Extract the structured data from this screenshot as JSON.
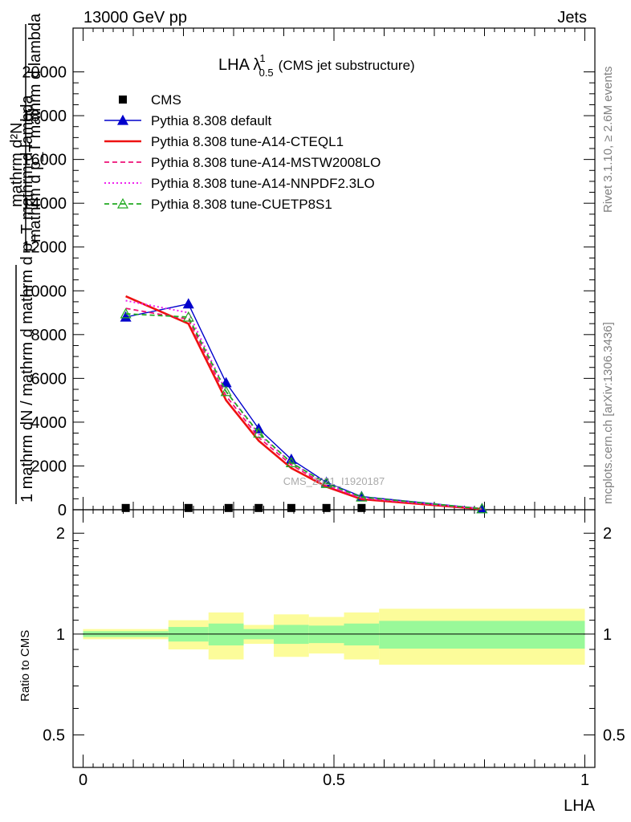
{
  "header": {
    "left": "13000 GeV pp",
    "right": "Jets"
  },
  "side_labels": {
    "rivet": "Rivet 3.1.10, ≥ 2.6M events",
    "mcplots": "mcplots.cern.ch [arXiv:1306.3436]"
  },
  "chart_data": [
    {
      "type": "line",
      "title_main": "LHA λ",
      "title_sup": "1",
      "title_sub": "0.5",
      "title_suffix": "(CMS jet substructure)",
      "watermark": "CMS_2021_I1920187",
      "ylabel_numerator": "mathrm d²N",
      "ylabel_denominator": "mathrm d p_T mathrm d lambda",
      "ylabel_lower": "1   mathrm dN / mathrm d mathrm d p_T mathrm d lambda",
      "ylim": [
        0,
        22000
      ],
      "yticks": [
        0,
        2000,
        4000,
        6000,
        8000,
        10000,
        12000,
        14000,
        16000,
        18000,
        20000
      ],
      "ytick_labels": [
        "0",
        "2000",
        "4000",
        "6000",
        "8000",
        "10000",
        "12000",
        "14000",
        "16000",
        "18000",
        "20000"
      ],
      "xlim": [
        -0.02,
        1.02
      ],
      "grid": false,
      "legend_position": "top-left",
      "series": [
        {
          "name": "CMS",
          "color": "#000000",
          "marker": "square",
          "line": "none",
          "x": [
            0.085,
            0.21,
            0.29,
            0.35,
            0.415,
            0.485,
            0.555
          ],
          "y": [
            80,
            80,
            80,
            80,
            80,
            80,
            80
          ]
        },
        {
          "name": "Pythia 8.308 default",
          "color": "#0000cc",
          "marker": "triangle",
          "line": "solid",
          "x": [
            0.085,
            0.21,
            0.285,
            0.35,
            0.415,
            0.485,
            0.555,
            0.795
          ],
          "y": [
            8800,
            9400,
            5800,
            3700,
            2300,
            1250,
            600,
            50
          ]
        },
        {
          "name": "Pythia 8.308 tune-A14-CTEQL1",
          "color": "#ee1111",
          "marker": "none",
          "line": "solid-thick",
          "x": [
            0.085,
            0.21,
            0.285,
            0.35,
            0.415,
            0.485,
            0.555,
            0.795
          ],
          "y": [
            9750,
            8500,
            5000,
            3150,
            1900,
            1050,
            480,
            30
          ]
        },
        {
          "name": "Pythia 8.308 tune-A14-MSTW2008LO",
          "color": "#ee1177",
          "marker": "none",
          "line": "dashed",
          "x": [
            0.085,
            0.21,
            0.285,
            0.35,
            0.415,
            0.485,
            0.555,
            0.795
          ],
          "y": [
            9200,
            8700,
            5200,
            3300,
            2050,
            1100,
            520,
            35
          ]
        },
        {
          "name": "Pythia 8.308 tune-A14-NNPDF2.3LO",
          "color": "#ee22ee",
          "marker": "none",
          "line": "dotted",
          "x": [
            0.085,
            0.21,
            0.285,
            0.35,
            0.415,
            0.485,
            0.555,
            0.795
          ],
          "y": [
            9550,
            9000,
            5400,
            3450,
            2150,
            1150,
            550,
            40
          ]
        },
        {
          "name": "Pythia 8.308 tune-CUETP8S1",
          "color": "#22aa22",
          "marker": "triangle-open",
          "line": "dashed",
          "x": [
            0.085,
            0.21,
            0.285,
            0.35,
            0.415,
            0.485,
            0.555,
            0.795
          ],
          "y": [
            8950,
            8800,
            5400,
            3500,
            2150,
            1200,
            580,
            45
          ]
        }
      ]
    },
    {
      "type": "area",
      "ylabel": "Ratio to CMS",
      "xlabel": "LHA",
      "log_y": true,
      "ylim": [
        0.4,
        2.35
      ],
      "yticks": [
        0.5,
        1,
        2
      ],
      "ytick_labels": [
        "0.5",
        "1",
        "2"
      ],
      "xlim": [
        -0.02,
        1.02
      ],
      "xticks": [
        0,
        0.5,
        1
      ],
      "xtick_labels": [
        "0",
        "0.5",
        "1"
      ],
      "reference_line": 1,
      "bands": [
        {
          "x0": 0.0,
          "x1": 0.17,
          "inner": [
            0.98,
            1.02
          ],
          "outer": [
            0.965,
            1.035
          ]
        },
        {
          "x0": 0.17,
          "x1": 0.25,
          "inner": [
            0.95,
            1.05
          ],
          "outer": [
            0.9,
            1.1
          ]
        },
        {
          "x0": 0.25,
          "x1": 0.32,
          "inner": [
            0.925,
            1.075
          ],
          "outer": [
            0.84,
            1.16
          ]
        },
        {
          "x0": 0.32,
          "x1": 0.38,
          "inner": [
            0.965,
            1.035
          ],
          "outer": [
            0.935,
            1.065
          ]
        },
        {
          "x0": 0.38,
          "x1": 0.45,
          "inner": [
            0.935,
            1.065
          ],
          "outer": [
            0.855,
            1.145
          ]
        },
        {
          "x0": 0.45,
          "x1": 0.52,
          "inner": [
            0.94,
            1.06
          ],
          "outer": [
            0.875,
            1.125
          ]
        },
        {
          "x0": 0.52,
          "x1": 0.59,
          "inner": [
            0.925,
            1.075
          ],
          "outer": [
            0.84,
            1.16
          ]
        },
        {
          "x0": 0.59,
          "x1": 1.0,
          "inner": [
            0.905,
            1.095
          ],
          "outer": [
            0.81,
            1.19
          ]
        }
      ],
      "band_colors": {
        "inner": "#99f999",
        "outer": "#fcfc9a"
      }
    }
  ]
}
